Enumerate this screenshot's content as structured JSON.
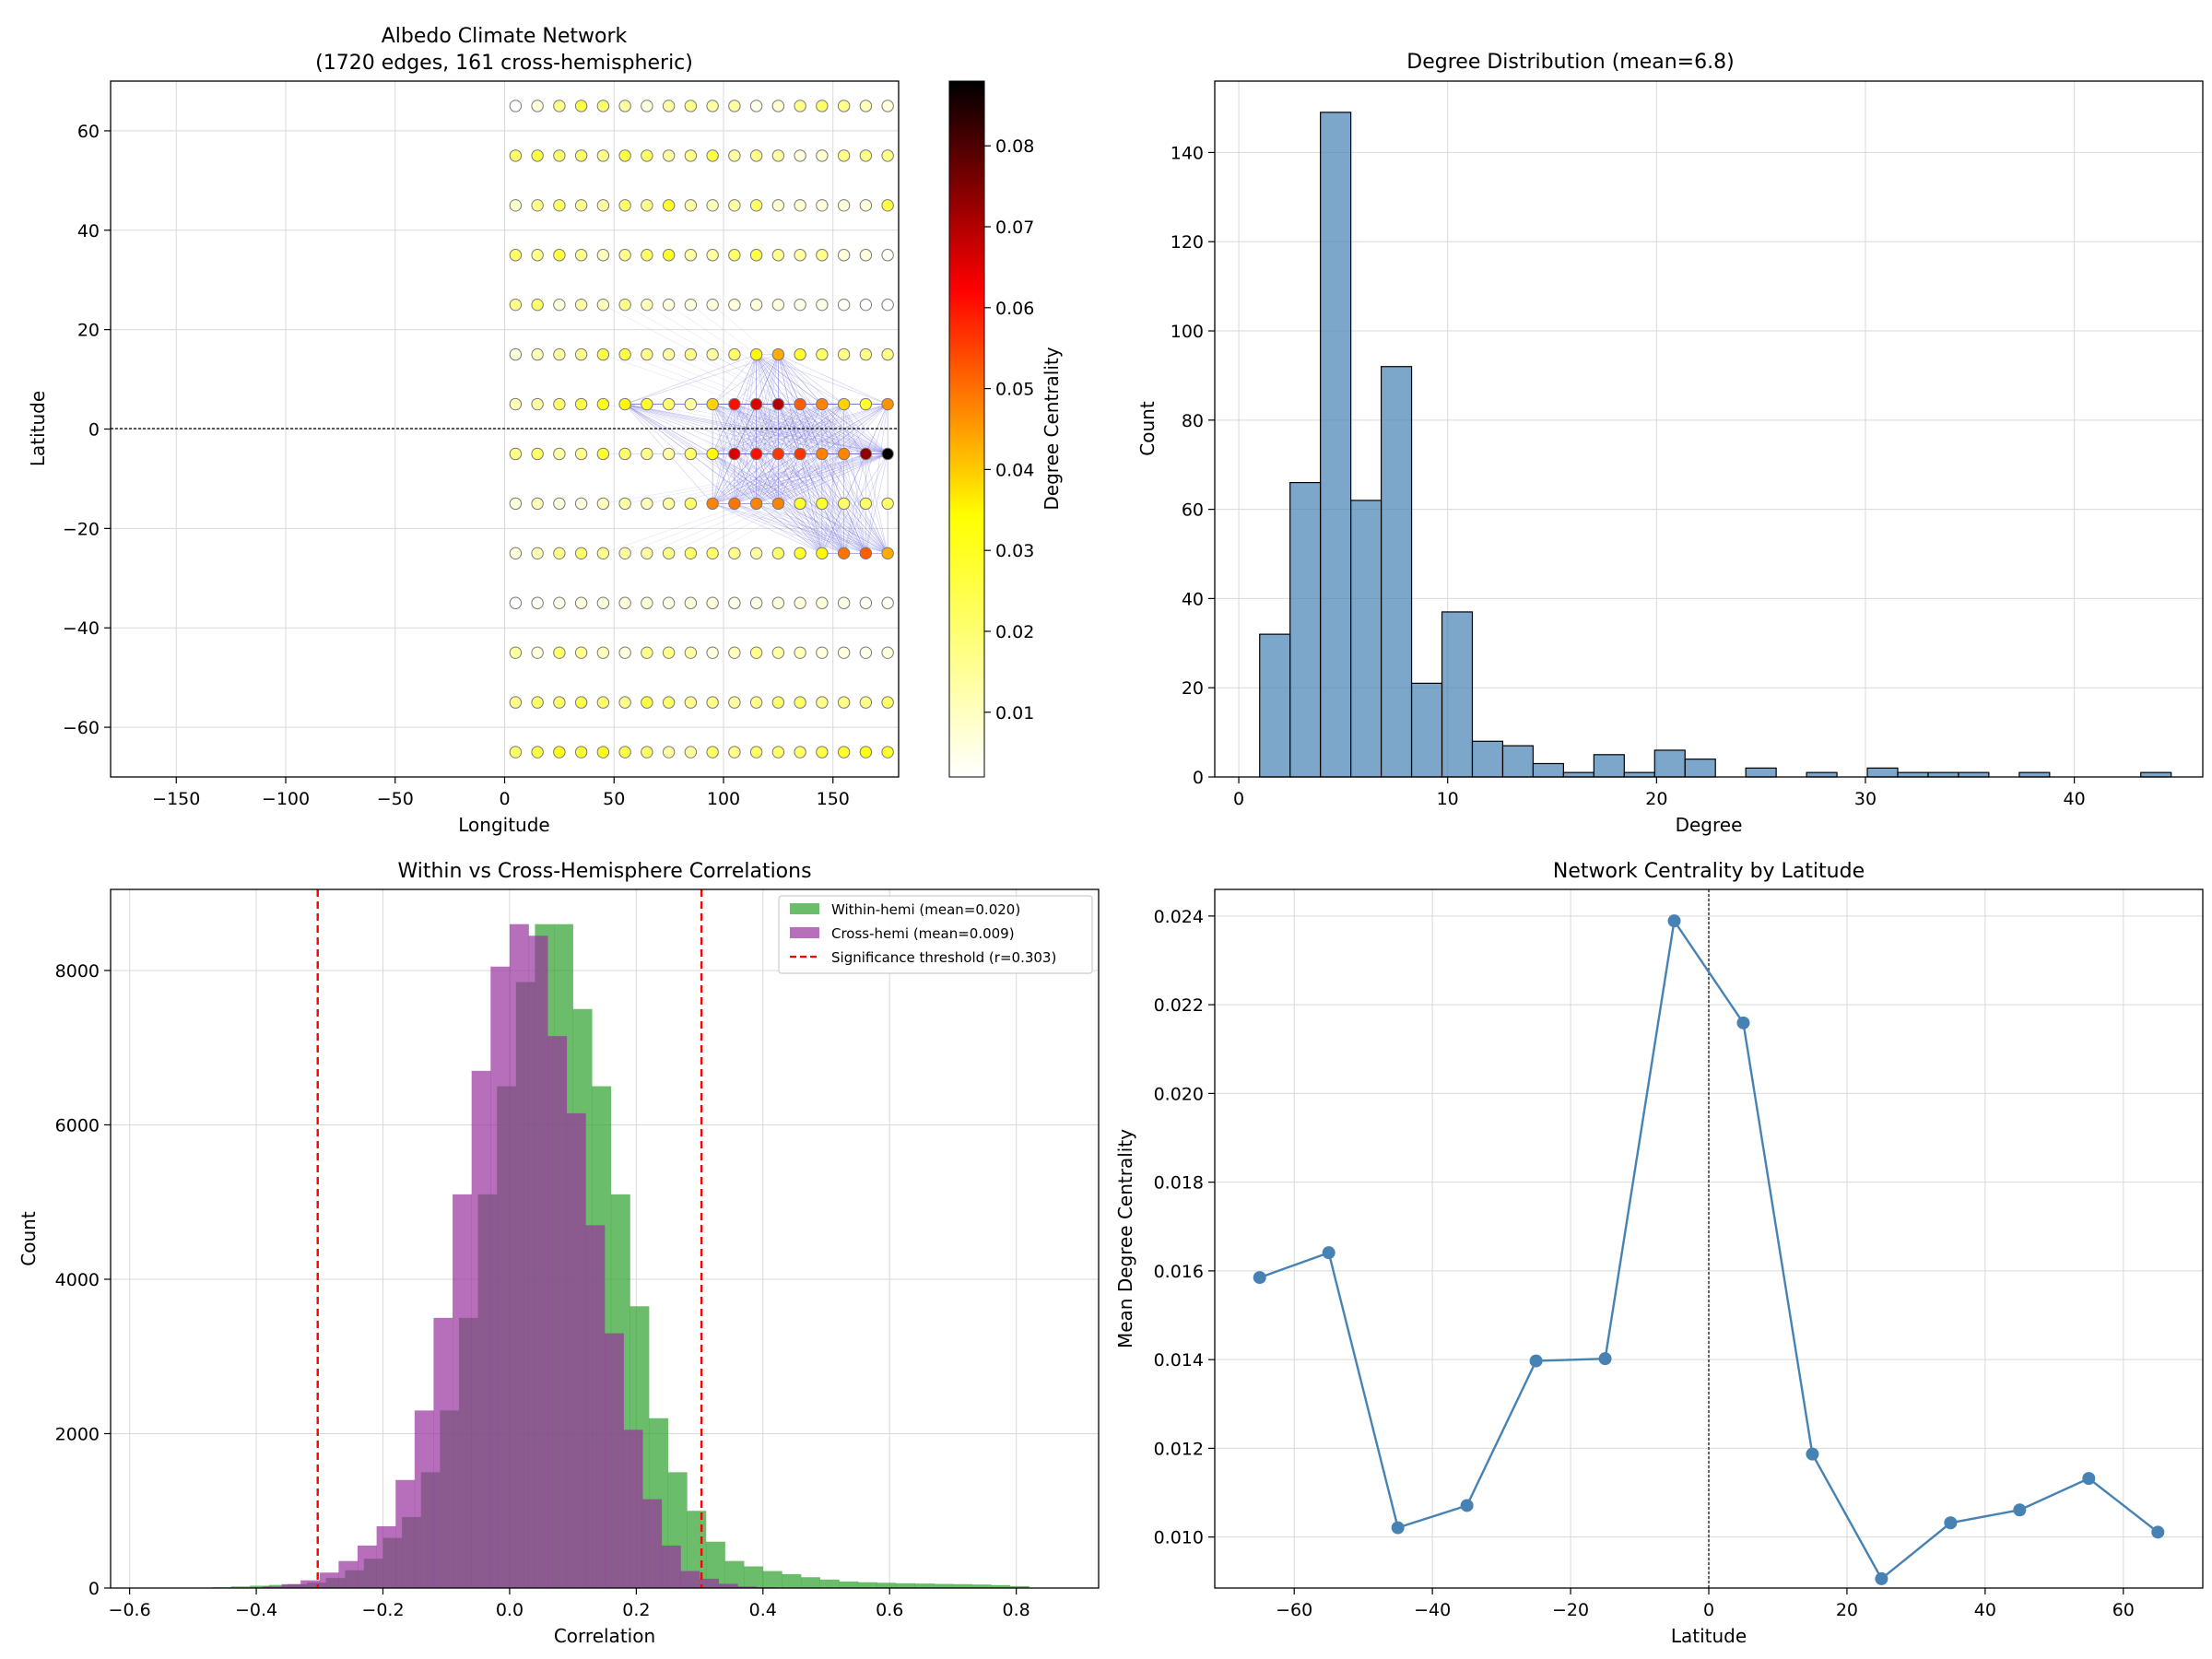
{
  "chart_data": [
    {
      "type": "scatter",
      "title_line1": "Albedo Climate Network",
      "title_line2": "(1720 edges, 161 cross-hemispheric)",
      "xlabel": "Longitude",
      "ylabel": "Latitude",
      "xlim": [
        -180,
        180
      ],
      "ylim": [
        -70,
        70
      ],
      "xticks": [
        -150,
        -100,
        -50,
        0,
        50,
        100,
        150
      ],
      "yticks": [
        -60,
        -40,
        -20,
        0,
        20,
        40,
        60
      ],
      "grid": true,
      "node_longitudes": [
        5,
        15,
        25,
        35,
        45,
        55,
        65,
        75,
        85,
        95,
        105,
        115,
        125,
        135,
        145,
        155,
        165,
        175
      ],
      "node_latitudes": [
        65,
        55,
        45,
        35,
        25,
        15,
        5,
        -5,
        -15,
        -25,
        -35,
        -45,
        -55,
        -65
      ],
      "centrality_rows": [
        [
          0.002,
          0.005,
          0.012,
          0.018,
          0.015,
          0.01,
          0.005,
          0.01,
          0.012,
          0.01,
          0.01,
          0.004,
          0.006,
          0.012,
          0.015,
          0.012,
          0.008,
          0.005
        ],
        [
          0.015,
          0.018,
          0.015,
          0.015,
          0.012,
          0.018,
          0.015,
          0.01,
          0.012,
          0.018,
          0.01,
          0.012,
          0.01,
          0.005,
          0.006,
          0.012,
          0.012,
          0.012
        ],
        [
          0.006,
          0.012,
          0.015,
          0.012,
          0.01,
          0.015,
          0.012,
          0.02,
          0.01,
          0.008,
          0.01,
          0.015,
          0.006,
          0.006,
          0.005,
          0.005,
          0.005,
          0.018
        ],
        [
          0.015,
          0.012,
          0.018,
          0.012,
          0.008,
          0.012,
          0.015,
          0.02,
          0.01,
          0.01,
          0.015,
          0.018,
          0.012,
          0.01,
          0.012,
          0.005,
          0.005,
          0.003
        ],
        [
          0.012,
          0.015,
          0.005,
          0.01,
          0.008,
          0.012,
          0.008,
          0.005,
          0.005,
          0.005,
          0.005,
          0.005,
          0.005,
          0.004,
          0.004,
          0.003,
          0.002,
          0.002
        ],
        [
          0.005,
          0.008,
          0.01,
          0.012,
          0.018,
          0.018,
          0.012,
          0.01,
          0.012,
          0.01,
          0.015,
          0.025,
          0.035,
          0.02,
          0.015,
          0.012,
          0.012,
          0.012
        ],
        [
          0.008,
          0.01,
          0.015,
          0.018,
          0.022,
          0.025,
          0.02,
          0.015,
          0.01,
          0.03,
          0.055,
          0.06,
          0.065,
          0.045,
          0.04,
          0.03,
          0.02,
          0.038
        ],
        [
          0.012,
          0.015,
          0.01,
          0.012,
          0.02,
          0.015,
          0.012,
          0.01,
          0.015,
          0.025,
          0.06,
          0.055,
          0.05,
          0.05,
          0.04,
          0.04,
          0.07,
          0.088
        ],
        [
          0.005,
          0.008,
          0.005,
          0.005,
          0.008,
          0.01,
          0.008,
          0.01,
          0.015,
          0.04,
          0.042,
          0.04,
          0.04,
          0.02,
          0.02,
          0.015,
          0.015,
          0.015
        ],
        [
          0.005,
          0.008,
          0.012,
          0.015,
          0.012,
          0.01,
          0.01,
          0.012,
          0.015,
          0.015,
          0.012,
          0.01,
          0.015,
          0.02,
          0.025,
          0.042,
          0.045,
          0.035
        ],
        [
          0.002,
          0.003,
          0.004,
          0.005,
          0.005,
          0.005,
          0.005,
          0.004,
          0.005,
          0.005,
          0.004,
          0.004,
          0.005,
          0.005,
          0.005,
          0.004,
          0.003,
          0.003
        ],
        [
          0.01,
          0.005,
          0.015,
          0.012,
          0.008,
          0.005,
          0.012,
          0.012,
          0.01,
          0.005,
          0.008,
          0.012,
          0.01,
          0.008,
          0.005,
          0.005,
          0.004,
          0.005
        ],
        [
          0.012,
          0.015,
          0.015,
          0.018,
          0.015,
          0.012,
          0.018,
          0.015,
          0.012,
          0.012,
          0.01,
          0.012,
          0.015,
          0.015,
          0.012,
          0.012,
          0.012,
          0.015
        ],
        [
          0.015,
          0.018,
          0.022,
          0.02,
          0.022,
          0.018,
          0.015,
          0.01,
          0.01,
          0.015,
          0.012,
          0.015,
          0.015,
          0.015,
          0.018,
          0.02,
          0.022,
          0.02
        ]
      ],
      "colorbar": {
        "label": "Degree Centrality",
        "cmap": "hot_r",
        "range": [
          0.002,
          0.088
        ],
        "ticks": [
          0.01,
          0.02,
          0.03,
          0.04,
          0.05,
          0.06,
          0.07,
          0.08
        ]
      },
      "colors": {
        "edges": "#6b6bd9"
      }
    },
    {
      "type": "bar",
      "title": "Degree Distribution (mean=6.8)",
      "xlabel": "Degree",
      "ylabel": "Count",
      "xlim": [
        -1.15,
        46.15
      ],
      "ylim": [
        0,
        156
      ],
      "xticks": [
        0,
        10,
        20,
        30,
        40
      ],
      "yticks": [
        0,
        20,
        40,
        60,
        80,
        100,
        120,
        140
      ],
      "bin_edges": [
        1.0,
        2.4545,
        3.9091,
        5.3636,
        6.8182,
        8.2727,
        9.7273,
        11.1818,
        12.6364,
        14.0909,
        15.5455,
        17.0,
        18.4545,
        19.9091,
        21.3636,
        22.8182,
        24.2727,
        25.7273,
        27.1818,
        28.6364,
        30.0909,
        31.5455,
        33.0,
        34.4545,
        35.9091,
        37.3636,
        38.8182,
        40.2727,
        41.7273,
        43.1818,
        44.6364
      ],
      "values": [
        32,
        66,
        149,
        62,
        92,
        21,
        37,
        8,
        7,
        3,
        1,
        5,
        1,
        6,
        4,
        0,
        2,
        0,
        1,
        0,
        2,
        1,
        1,
        1,
        0,
        1,
        0,
        0,
        0,
        1
      ],
      "grid": true,
      "colors": {
        "bar": "#4682b4",
        "edge": "#000000"
      }
    },
    {
      "type": "bar",
      "title": "Within vs Cross-Hemisphere Correlations",
      "xlabel": "Correlation",
      "ylabel": "Count",
      "xlim": [
        -0.63,
        0.93
      ],
      "ylim": [
        0,
        9050
      ],
      "xticks": [
        -0.6,
        -0.4,
        -0.2,
        0.0,
        0.2,
        0.4,
        0.6,
        0.8
      ],
      "yticks": [
        0,
        2000,
        4000,
        6000,
        8000
      ],
      "grid": true,
      "legend_position": "upper right",
      "threshold": 0.303,
      "series": [
        {
          "name": "Within-hemi (mean=0.020)",
          "color": "#2ca02c",
          "bin_start": -0.5,
          "bin_width": 0.03,
          "values": [
            5,
            10,
            20,
            30,
            40,
            50,
            70,
            130,
            230,
            380,
            650,
            920,
            1500,
            2300,
            3500,
            5100,
            6500,
            7850,
            8600,
            8600,
            7500,
            6500,
            5100,
            3650,
            2200,
            1500,
            1000,
            600,
            350,
            280,
            220,
            180,
            140,
            110,
            85,
            75,
            68,
            62,
            58,
            53,
            50,
            45,
            38,
            25
          ]
        },
        {
          "name": "Cross-hemi (mean=0.009)",
          "color": "#9932a0",
          "bin_start": -0.39,
          "bin_width": 0.03,
          "values": [
            20,
            50,
            100,
            200,
            350,
            550,
            800,
            1400,
            2300,
            3500,
            5100,
            6700,
            8050,
            8600,
            8450,
            7150,
            6150,
            4700,
            3300,
            2050,
            1150,
            550,
            220,
            120,
            55,
            20,
            10
          ]
        }
      ],
      "threshold_label": "Significance threshold (r=0.303)",
      "colors": {
        "threshold": "#ff0000"
      }
    },
    {
      "type": "line",
      "title": "Network Centrality by Latitude",
      "xlabel": "Latitude",
      "ylabel": "Mean Degree Centrality",
      "xlim": [
        -71.5,
        71.5
      ],
      "ylim": [
        0.00885,
        0.0246
      ],
      "xticks": [
        -60,
        -40,
        -20,
        0,
        20,
        40,
        60
      ],
      "yticks": [
        0.01,
        0.012,
        0.014,
        0.016,
        0.018,
        0.02,
        0.022,
        0.024
      ],
      "ytick_labels": [
        "0.010",
        "0.012",
        "0.014",
        "0.016",
        "0.018",
        "0.020",
        "0.022",
        "0.024"
      ],
      "x": [
        -65,
        -55,
        -45,
        -35,
        -25,
        -15,
        -5,
        5,
        15,
        25,
        35,
        45,
        55,
        65
      ],
      "y": [
        0.01585,
        0.01641,
        0.01021,
        0.01071,
        0.01397,
        0.01402,
        0.02389,
        0.02159,
        0.01187,
        0.00906,
        0.01032,
        0.01061,
        0.01132,
        0.01011
      ],
      "grid": true,
      "colors": {
        "line": "#4682b4"
      }
    }
  ]
}
